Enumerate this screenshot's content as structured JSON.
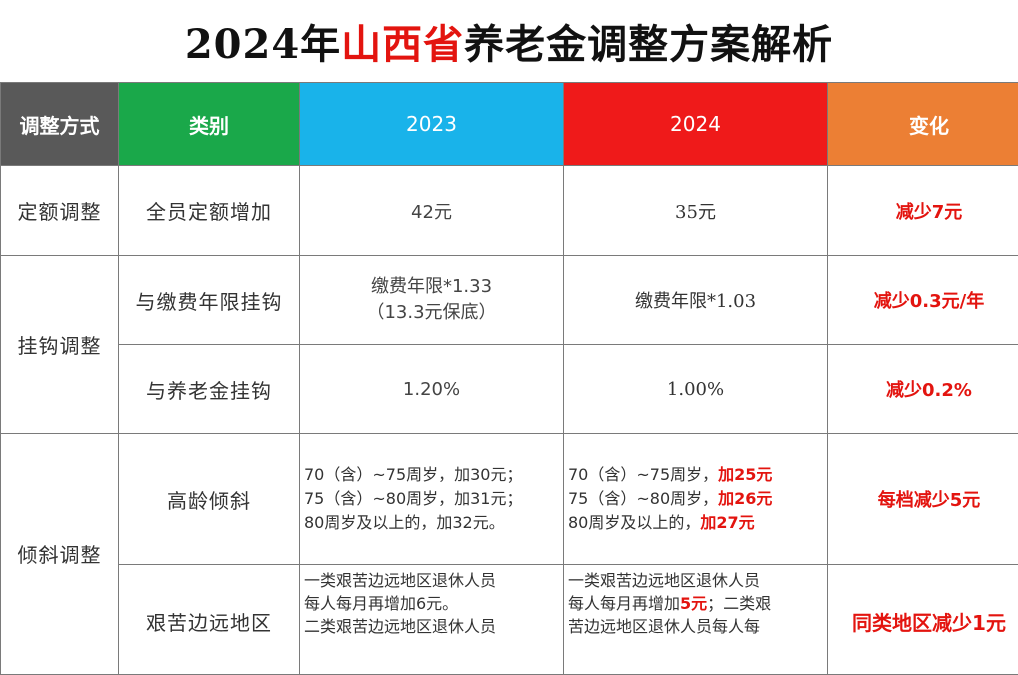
{
  "title": {
    "prefix": "2024年",
    "province": "山西省",
    "suffix": "养老金调整方案解析"
  },
  "header": {
    "method": "调整方式",
    "category": "类别",
    "y2023": "2023",
    "y2024": "2024",
    "change": "变化"
  },
  "rows": {
    "fixed": {
      "method": "定额调整",
      "category": "全员定额增加",
      "v2023": "42元",
      "v2024": "35元",
      "change": "减少7元"
    },
    "hook_method": "挂钩调整",
    "hook_years": {
      "category": "与缴费年限挂钩",
      "v2023_line1": "缴费年限*1.33",
      "v2023_line2": "（13.3元保底）",
      "v2024": "缴费年限*1.03",
      "change": "减少0.3元/年"
    },
    "hook_pension": {
      "category": "与养老金挂钩",
      "v2023": "1.20%",
      "v2024": "1.00%",
      "change": "减少0.2%"
    },
    "tilt_method": "倾斜调整",
    "elderly": {
      "category": "高龄倾斜",
      "v2023": [
        "70（含）~75周岁，加30元；",
        "75（含）~80周岁，加31元；",
        "80周岁及以上的，加32元。"
      ],
      "v2024": [
        {
          "text": "70（含）~75周岁，",
          "red": "加25元"
        },
        {
          "text": "75（含）~80周岁，",
          "red": "加26元"
        },
        {
          "text": "80周岁及以上的，",
          "red": "加27元"
        }
      ],
      "change": "每档减少5元"
    },
    "remote": {
      "category": "艰苦边远地区",
      "v2023": [
        "一类艰苦边远地区退休人员",
        "每人每月再增加6元。",
        "二类艰苦边远地区退休人员"
      ],
      "v2024_line1": "一类艰苦边远地区退休人员",
      "v2024_line2_pre": "每人每月再增加",
      "v2024_line2_red": "5元",
      "v2024_line2_post": "；二类艰",
      "v2024_line3": "苦边远地区退休人员每人每",
      "change": "同类地区减少1元"
    }
  },
  "colors": {
    "gray": "#595959",
    "green": "#1aa84a",
    "blue": "#19b3ea",
    "red": "#ef1a1a",
    "orange": "#ec7f34",
    "accent": "#e3140f"
  }
}
